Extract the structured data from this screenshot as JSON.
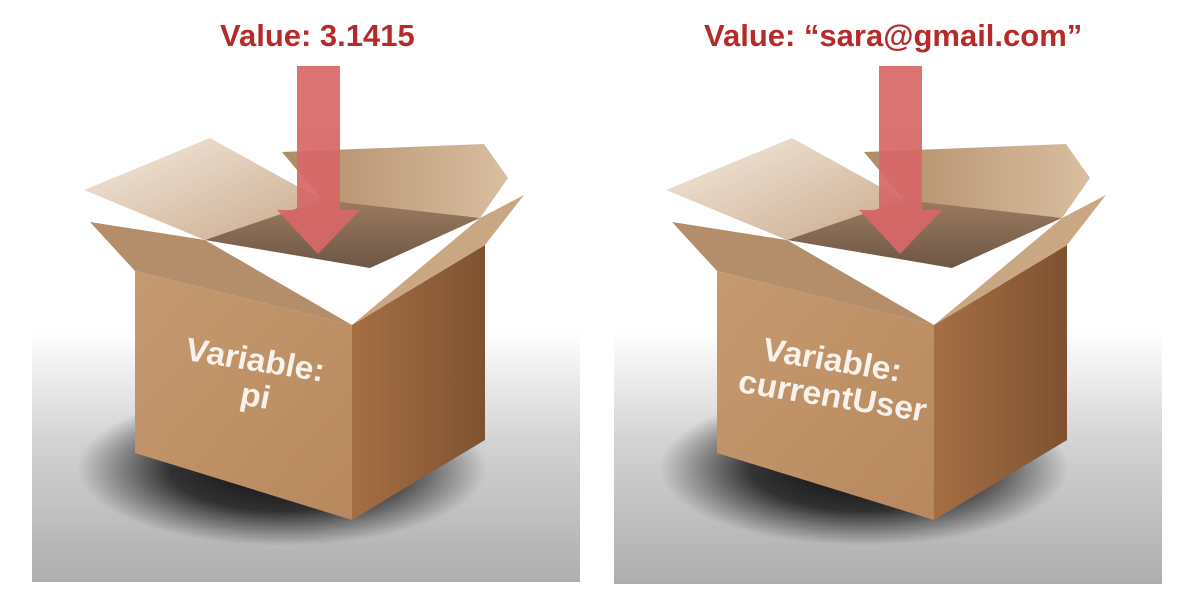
{
  "colors": {
    "accent": "#b72a2a",
    "arrow": "#d46b6b",
    "box": "#c4946a",
    "floor": "#b0b0b0"
  },
  "diagram": {
    "boxes": [
      {
        "value_label": "Value: 3.1415",
        "variable_label": "Variable:",
        "variable_name": "pi"
      },
      {
        "value_label": "Value: “sara@gmail.com”",
        "variable_label": "Variable:",
        "variable_name": "currentUser"
      }
    ]
  }
}
